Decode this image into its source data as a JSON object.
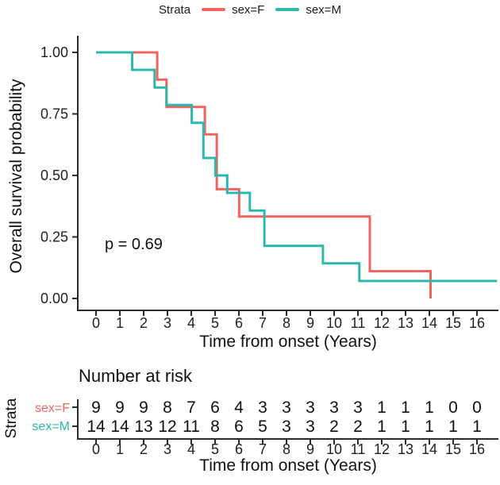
{
  "legend": {
    "title": "Strata",
    "items": [
      {
        "label": "sex=F",
        "color": "#EE6560"
      },
      {
        "label": "sex=M",
        "color": "#2EB7AD"
      }
    ]
  },
  "main_plot": {
    "ylabel": "Overall survival probability",
    "xlabel": "Time from onset (Years)",
    "pvalue_text": "p = 0.69",
    "y_ticks": [
      {
        "v": 1.0,
        "label": "1.00"
      },
      {
        "v": 0.75,
        "label": "0.75"
      },
      {
        "v": 0.5,
        "label": "0.50"
      },
      {
        "v": 0.25,
        "label": "0.25"
      },
      {
        "v": 0.0,
        "label": "0.00"
      }
    ],
    "x_tick_labels": [
      "0",
      "1",
      "2",
      "3",
      "4",
      "5",
      "6",
      "7",
      "8",
      "9",
      "10",
      "11",
      "12",
      "13",
      "14",
      "15",
      "16"
    ]
  },
  "chart_data": {
    "type": "line",
    "subtype": "kaplan-meier-step",
    "title": "",
    "xlabel": "Time from onset (Years)",
    "ylabel": "Overall survival probability",
    "xlim": [
      0,
      16.9
    ],
    "ylim": [
      0,
      1
    ],
    "grid": false,
    "legend_position": "top",
    "annotation": "p = 0.69",
    "series": [
      {
        "name": "sex=F",
        "color": "#EE6560",
        "points": [
          [
            0,
            1.0
          ],
          [
            2.57,
            1.0
          ],
          [
            2.57,
            0.889
          ],
          [
            2.96,
            0.889
          ],
          [
            2.96,
            0.778
          ],
          [
            4.57,
            0.778
          ],
          [
            4.57,
            0.667
          ],
          [
            5.07,
            0.667
          ],
          [
            5.07,
            0.444
          ],
          [
            6.01,
            0.444
          ],
          [
            6.01,
            0.333
          ],
          [
            11.5,
            0.333
          ],
          [
            11.5,
            0.111
          ],
          [
            14.05,
            0.111
          ],
          [
            14.05,
            0.0
          ]
        ]
      },
      {
        "name": "sex=M",
        "color": "#2EB7AD",
        "points": [
          [
            0,
            1.0
          ],
          [
            1.52,
            1.0
          ],
          [
            1.52,
            0.929
          ],
          [
            2.46,
            0.929
          ],
          [
            2.46,
            0.857
          ],
          [
            2.96,
            0.857
          ],
          [
            2.96,
            0.786
          ],
          [
            4.02,
            0.786
          ],
          [
            4.02,
            0.714
          ],
          [
            4.51,
            0.714
          ],
          [
            4.51,
            0.571
          ],
          [
            5.01,
            0.571
          ],
          [
            5.01,
            0.5
          ],
          [
            5.51,
            0.5
          ],
          [
            5.51,
            0.429
          ],
          [
            6.46,
            0.429
          ],
          [
            6.46,
            0.357
          ],
          [
            7.07,
            0.357
          ],
          [
            7.07,
            0.214
          ],
          [
            9.53,
            0.214
          ],
          [
            9.53,
            0.143
          ],
          [
            11.06,
            0.143
          ],
          [
            11.06,
            0.071
          ],
          [
            16.84,
            0.071
          ]
        ]
      }
    ]
  },
  "risk_table": {
    "title": "Number at risk",
    "axis_label": "Strata",
    "xlabel": "Time from onset (Years)",
    "x_tick_labels": [
      "0",
      "1",
      "2",
      "3",
      "4",
      "5",
      "6",
      "7",
      "8",
      "9",
      "10",
      "11",
      "12",
      "13",
      "14",
      "15",
      "16"
    ],
    "rows": [
      {
        "label": "sex=F",
        "color": "#EE6560",
        "values": [
          "9",
          "9",
          "9",
          "8",
          "7",
          "6",
          "4",
          "3",
          "3",
          "3",
          "3",
          "3",
          "1",
          "1",
          "1",
          "0",
          "0"
        ]
      },
      {
        "label": "sex=M",
        "color": "#2EB7AD",
        "values": [
          "14",
          "14",
          "13",
          "12",
          "11",
          "8",
          "6",
          "5",
          "3",
          "3",
          "2",
          "2",
          "1",
          "1",
          "1",
          "1",
          "1"
        ]
      }
    ]
  }
}
